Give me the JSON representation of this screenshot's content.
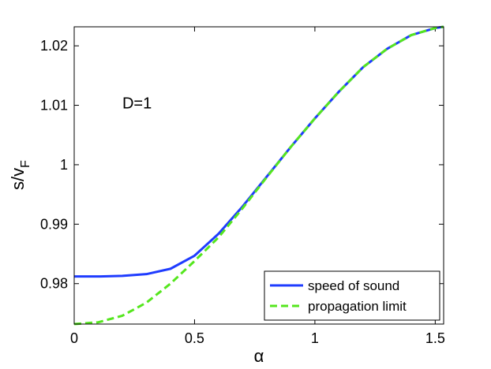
{
  "chart_data": {
    "type": "line",
    "xlabel": "α",
    "ylabel_main": "s/v",
    "ylabel_sub": "F",
    "xlim": [
      0,
      1.5349
    ],
    "ylim": [
      0.9732,
      1.0232
    ],
    "xticks": [
      0,
      0.5,
      1,
      1.5
    ],
    "xtick_labels": [
      "0",
      "0.5",
      "1",
      "1.5"
    ],
    "yticks": [
      0.98,
      0.99,
      1,
      1.01,
      1.02
    ],
    "ytick_labels": [
      "0.98",
      "0.99",
      "1",
      "1.01",
      "1.02"
    ],
    "grid": false,
    "legend_position": "bottom-right",
    "annotation": {
      "text": "D=1",
      "x": 0.2,
      "y": 1.0095
    },
    "series": [
      {
        "name": "speed of sound",
        "color": "#1f3cff",
        "style": "solid",
        "x": [
          0,
          0.1,
          0.2,
          0.3,
          0.4,
          0.5,
          0.6,
          0.7,
          0.8,
          0.9,
          1.0,
          1.1,
          1.2,
          1.3,
          1.4,
          1.5,
          1.5349
        ],
        "y": [
          0.9812,
          0.9812,
          0.9813,
          0.9816,
          0.9825,
          0.9847,
          0.9884,
          0.993,
          0.998,
          1.003,
          1.0078,
          1.0123,
          1.0164,
          1.0195,
          1.0218,
          1.023,
          1.0232
        ]
      },
      {
        "name": "propagation limit",
        "color": "#55e61e",
        "style": "dashed",
        "x": [
          0,
          0.1,
          0.2,
          0.3,
          0.4,
          0.5,
          0.6,
          0.7,
          0.8,
          0.9,
          1.0,
          1.1,
          1.2,
          1.3,
          1.4,
          1.5,
          1.5349
        ],
        "y": [
          0.9732,
          0.9735,
          0.9746,
          0.9768,
          0.98,
          0.9838,
          0.9878,
          0.9927,
          0.9979,
          1.003,
          1.0078,
          1.0123,
          1.0164,
          1.0195,
          1.0218,
          1.023,
          1.0232
        ]
      }
    ]
  }
}
